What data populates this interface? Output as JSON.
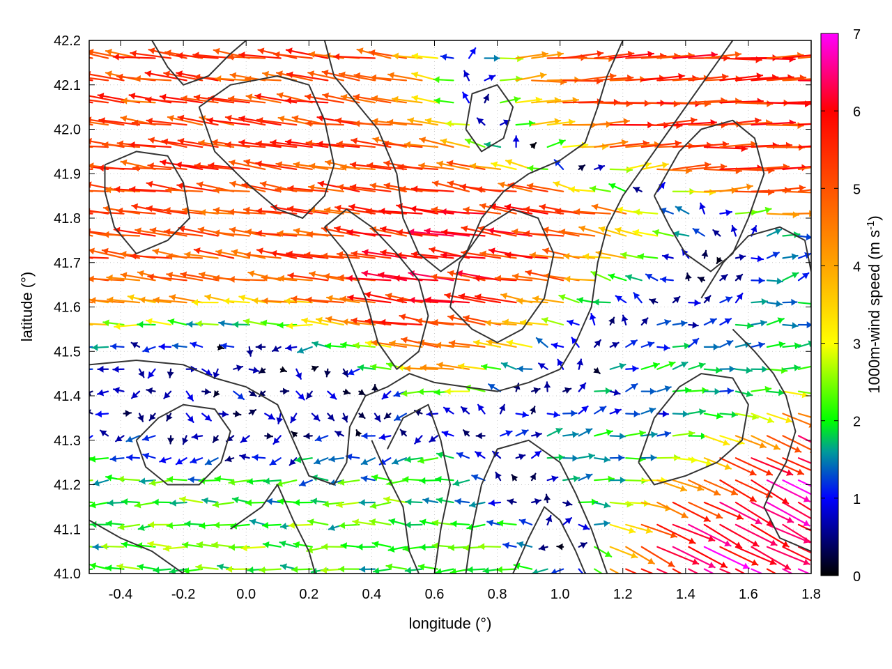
{
  "chart_data": {
    "type": "vector-field",
    "title": "",
    "xlabel": "longitude (°)",
    "ylabel": "latitude (°)",
    "xlim": [
      -0.5,
      1.8
    ],
    "ylim": [
      41.0,
      42.2
    ],
    "xticks": [
      -0.4,
      -0.2,
      0.0,
      0.2,
      0.4,
      0.6,
      0.8,
      1.0,
      1.2,
      1.4,
      1.6,
      1.8
    ],
    "xtick_labels": [
      "-0.4",
      "-0.2",
      "0.0",
      "0.2",
      "0.4",
      "0.6",
      "0.8",
      "1.0",
      "1.2",
      "1.4",
      "1.6",
      "1.8"
    ],
    "yticks": [
      41.0,
      41.1,
      41.2,
      41.3,
      41.4,
      41.5,
      41.6,
      41.7,
      41.8,
      41.9,
      42.0,
      42.1,
      42.2
    ],
    "ytick_labels": [
      "41.0",
      "41.1",
      "41.2",
      "41.3",
      "41.4",
      "41.5",
      "41.6",
      "41.7",
      "41.8",
      "41.9",
      "42.0",
      "42.1",
      "42.2"
    ],
    "grid": true,
    "colorbar": {
      "label_main": "1000m-wind speed (m s",
      "label_sup": "-1",
      "label_end": ")",
      "range": [
        0,
        7
      ],
      "ticks": [
        0,
        1,
        2,
        3,
        4,
        5,
        6,
        7
      ],
      "tick_labels": [
        "0",
        "1",
        "2",
        "3",
        "4",
        "5",
        "6",
        "7"
      ],
      "stops": [
        {
          "v": 0,
          "color": "#000000"
        },
        {
          "v": 1,
          "color": "#0000ff"
        },
        {
          "v": 1.6,
          "color": "#009a9a"
        },
        {
          "v": 2,
          "color": "#00ff00"
        },
        {
          "v": 3,
          "color": "#ffff00"
        },
        {
          "v": 4,
          "color": "#ffa500"
        },
        {
          "v": 6,
          "color": "#ff0000"
        },
        {
          "v": 7,
          "color": "#ff00ff"
        }
      ]
    },
    "contour_color": "#333333",
    "contours": [
      [
        [
          -0.5,
          41.47
        ],
        [
          -0.35,
          41.48
        ],
        [
          -0.2,
          41.47
        ],
        [
          -0.1,
          41.44
        ],
        [
          0.0,
          41.42
        ],
        [
          0.1,
          41.38
        ],
        [
          0.15,
          41.3
        ],
        [
          0.2,
          41.22
        ],
        [
          0.28,
          41.2
        ],
        [
          0.32,
          41.25
        ],
        [
          0.33,
          41.33
        ],
        [
          0.38,
          41.4
        ],
        [
          0.45,
          41.42
        ],
        [
          0.52,
          41.45
        ],
        [
          0.6,
          41.43
        ],
        [
          0.7,
          41.42
        ],
        [
          0.8,
          41.41
        ],
        [
          0.9,
          41.43
        ],
        [
          1.0,
          41.46
        ],
        [
          1.05,
          41.52
        ],
        [
          1.1,
          41.6
        ],
        [
          1.12,
          41.7
        ],
        [
          1.15,
          41.78
        ],
        [
          1.2,
          41.85
        ],
        [
          1.25,
          41.9
        ],
        [
          1.3,
          41.95
        ],
        [
          1.35,
          42.0
        ],
        [
          1.4,
          42.05
        ],
        [
          1.45,
          42.1
        ],
        [
          1.5,
          42.15
        ],
        [
          1.55,
          42.2
        ]
      ],
      [
        [
          -0.45,
          41.92
        ],
        [
          -0.35,
          41.95
        ],
        [
          -0.25,
          41.94
        ],
        [
          -0.2,
          41.88
        ],
        [
          -0.18,
          41.8
        ],
        [
          -0.25,
          41.75
        ],
        [
          -0.35,
          41.72
        ],
        [
          -0.42,
          41.78
        ],
        [
          -0.45,
          41.86
        ],
        [
          -0.45,
          41.92
        ]
      ],
      [
        [
          -0.15,
          42.05
        ],
        [
          -0.05,
          42.1
        ],
        [
          0.1,
          42.12
        ],
        [
          0.2,
          42.1
        ],
        [
          0.25,
          42.02
        ],
        [
          0.28,
          41.92
        ],
        [
          0.25,
          41.85
        ],
        [
          0.18,
          41.8
        ],
        [
          0.1,
          41.82
        ],
        [
          0.0,
          41.88
        ],
        [
          -0.1,
          41.95
        ],
        [
          -0.15,
          42.05
        ]
      ],
      [
        [
          0.25,
          42.2
        ],
        [
          0.28,
          42.12
        ],
        [
          0.35,
          42.06
        ],
        [
          0.42,
          42.0
        ],
        [
          0.48,
          41.9
        ],
        [
          0.5,
          41.8
        ],
        [
          0.55,
          41.72
        ],
        [
          0.62,
          41.68
        ],
        [
          0.7,
          41.72
        ],
        [
          0.75,
          41.8
        ],
        [
          0.82,
          41.86
        ],
        [
          0.9,
          41.9
        ],
        [
          1.0,
          41.93
        ],
        [
          1.08,
          41.97
        ],
        [
          1.12,
          42.05
        ],
        [
          1.15,
          42.12
        ],
        [
          1.2,
          42.2
        ]
      ],
      [
        [
          0.25,
          41.78
        ],
        [
          0.32,
          41.72
        ],
        [
          0.38,
          41.62
        ],
        [
          0.42,
          41.52
        ],
        [
          0.48,
          41.46
        ],
        [
          0.55,
          41.5
        ],
        [
          0.58,
          41.58
        ],
        [
          0.55,
          41.66
        ],
        [
          0.48,
          41.72
        ],
        [
          0.4,
          41.78
        ],
        [
          0.32,
          41.82
        ],
        [
          0.25,
          41.78
        ]
      ],
      [
        [
          0.65,
          41.6
        ],
        [
          0.72,
          41.55
        ],
        [
          0.8,
          41.52
        ],
        [
          0.88,
          41.55
        ],
        [
          0.95,
          41.62
        ],
        [
          0.98,
          41.72
        ],
        [
          0.93,
          41.8
        ],
        [
          0.85,
          41.82
        ],
        [
          0.76,
          41.78
        ],
        [
          0.68,
          41.7
        ],
        [
          0.65,
          41.6
        ]
      ],
      [
        [
          0.4,
          41.3
        ],
        [
          0.45,
          41.22
        ],
        [
          0.5,
          41.15
        ],
        [
          0.52,
          41.05
        ],
        [
          0.55,
          41.0
        ]
      ],
      [
        [
          0.6,
          41.0
        ],
        [
          0.62,
          41.1
        ],
        [
          0.65,
          41.2
        ],
        [
          0.62,
          41.3
        ],
        [
          0.58,
          41.38
        ],
        [
          0.5,
          41.35
        ],
        [
          0.45,
          41.28
        ]
      ],
      [
        [
          0.7,
          41.0
        ],
        [
          0.72,
          41.1
        ],
        [
          0.75,
          41.2
        ],
        [
          0.8,
          41.28
        ],
        [
          0.9,
          41.3
        ],
        [
          1.0,
          41.25
        ],
        [
          1.05,
          41.18
        ],
        [
          1.1,
          41.1
        ],
        [
          1.15,
          41.0
        ]
      ],
      [
        [
          0.85,
          41.0
        ],
        [
          0.9,
          41.08
        ],
        [
          0.95,
          41.15
        ],
        [
          1.0,
          41.12
        ],
        [
          1.05,
          41.05
        ],
        [
          1.08,
          41.0
        ]
      ],
      [
        [
          1.25,
          41.25
        ],
        [
          1.3,
          41.35
        ],
        [
          1.38,
          41.42
        ],
        [
          1.45,
          41.45
        ],
        [
          1.55,
          41.44
        ],
        [
          1.6,
          41.38
        ],
        [
          1.58,
          41.3
        ],
        [
          1.5,
          41.25
        ],
        [
          1.4,
          41.22
        ],
        [
          1.3,
          41.2
        ],
        [
          1.25,
          41.25
        ]
      ],
      [
        [
          1.45,
          41.62
        ],
        [
          1.52,
          41.7
        ],
        [
          1.6,
          41.76
        ],
        [
          1.7,
          41.78
        ],
        [
          1.78,
          41.75
        ],
        [
          1.8,
          41.68
        ]
      ],
      [
        [
          1.55,
          41.55
        ],
        [
          1.62,
          41.5
        ],
        [
          1.68,
          41.45
        ],
        [
          1.72,
          41.4
        ],
        [
          1.75,
          41.32
        ],
        [
          1.72,
          41.25
        ],
        [
          1.68,
          41.2
        ],
        [
          1.65,
          41.15
        ],
        [
          1.7,
          41.08
        ],
        [
          1.8,
          41.05
        ]
      ],
      [
        [
          -0.35,
          41.3
        ],
        [
          -0.28,
          41.35
        ],
        [
          -0.2,
          41.38
        ],
        [
          -0.1,
          41.37
        ],
        [
          -0.05,
          41.32
        ],
        [
          -0.08,
          41.25
        ],
        [
          -0.15,
          41.2
        ],
        [
          -0.25,
          41.2
        ],
        [
          -0.32,
          41.24
        ],
        [
          -0.35,
          41.3
        ]
      ],
      [
        [
          -0.5,
          41.12
        ],
        [
          -0.4,
          41.08
        ],
        [
          -0.3,
          41.05
        ],
        [
          -0.2,
          41.0
        ]
      ],
      [
        [
          -0.05,
          41.1
        ],
        [
          0.05,
          41.15
        ],
        [
          0.1,
          41.2
        ],
        [
          0.15,
          41.12
        ],
        [
          0.2,
          41.05
        ],
        [
          0.22,
          41.0
        ]
      ],
      [
        [
          1.3,
          41.85
        ],
        [
          1.35,
          41.78
        ],
        [
          1.4,
          41.72
        ],
        [
          1.48,
          41.68
        ],
        [
          1.55,
          41.72
        ],
        [
          1.6,
          41.8
        ],
        [
          1.65,
          41.9
        ],
        [
          1.62,
          41.98
        ],
        [
          1.55,
          42.02
        ],
        [
          1.45,
          42.0
        ],
        [
          1.38,
          41.95
        ],
        [
          1.3,
          41.85
        ]
      ],
      [
        [
          0.7,
          42.0
        ],
        [
          0.75,
          41.95
        ],
        [
          0.82,
          41.98
        ],
        [
          0.85,
          42.05
        ],
        [
          0.8,
          42.1
        ],
        [
          0.72,
          42.08
        ],
        [
          0.7,
          42.0
        ]
      ],
      [
        [
          -0.3,
          42.2
        ],
        [
          -0.25,
          42.14
        ],
        [
          -0.2,
          42.1
        ],
        [
          -0.12,
          42.12
        ],
        [
          -0.05,
          42.17
        ],
        [
          0.0,
          42.2
        ]
      ]
    ],
    "vector_field": {
      "grid_x": {
        "start": -0.49,
        "stop": 1.8,
        "step": 0.05
      },
      "grid_y": {
        "start": 41.01,
        "stop": 42.2,
        "step": 0.05
      },
      "speed_unit": "m s-1",
      "description_regions": [
        {
          "name": "strong westward flow north-west",
          "lon": [
            -0.5,
            0.5
          ],
          "lat": [
            41.6,
            42.2
          ],
          "u": -4.5,
          "v": 0.6,
          "speed": 5.2
        },
        {
          "name": "westward jet core",
          "lon": [
            0.5,
            1.1
          ],
          "lat": [
            41.55,
            41.8
          ],
          "u": -5.5,
          "v": 0.8,
          "speed": 5.8
        },
        {
          "name": "eastward flow north-east",
          "lon": [
            1.0,
            1.8
          ],
          "lat": [
            42.0,
            42.2
          ],
          "u": 5.5,
          "v": 0.2,
          "speed": 5.5
        },
        {
          "name": "weak variable flow central",
          "lon": [
            -0.3,
            0.3
          ],
          "lat": [
            41.3,
            41.5
          ],
          "u": 0.5,
          "v": -0.2,
          "speed": 1.2
        },
        {
          "name": "easterly band south",
          "lon": [
            -0.5,
            0.4
          ],
          "lat": [
            41.0,
            41.3
          ],
          "u": -2.0,
          "v": 0.0,
          "speed": 2.2
        },
        {
          "name": "south-east strong flow",
          "lon": [
            1.5,
            1.8
          ],
          "lat": [
            41.05,
            41.25
          ],
          "u": 5.0,
          "v": -2.5,
          "speed": 6.5
        },
        {
          "name": "weak central-east",
          "lon": [
            1.0,
            1.5
          ],
          "lat": [
            41.3,
            41.6
          ],
          "u": 1.0,
          "v": 0.2,
          "speed": 1.5
        }
      ]
    }
  }
}
